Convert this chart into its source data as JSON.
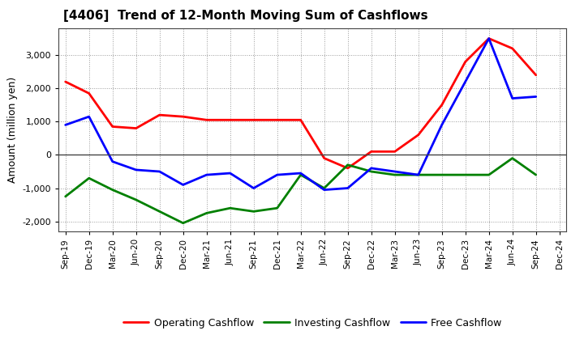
{
  "title": "[4406]  Trend of 12-Month Moving Sum of Cashflows",
  "ylabel": "Amount (million yen)",
  "xlabels": [
    "Sep-19",
    "Dec-19",
    "Mar-20",
    "Jun-20",
    "Sep-20",
    "Dec-20",
    "Mar-21",
    "Jun-21",
    "Sep-21",
    "Dec-21",
    "Mar-22",
    "Jun-22",
    "Sep-22",
    "Dec-22",
    "Mar-23",
    "Jun-23",
    "Sep-23",
    "Dec-23",
    "Mar-24",
    "Jun-24",
    "Sep-24",
    "Dec-24"
  ],
  "operating": [
    2200,
    1850,
    850,
    800,
    1200,
    1150,
    1050,
    1050,
    1050,
    1050,
    1050,
    -100,
    -400,
    100,
    100,
    600,
    1500,
    2800,
    3500,
    3200,
    2400,
    null
  ],
  "investing": [
    -1250,
    -700,
    -1050,
    -1350,
    -1700,
    -2050,
    -1750,
    -1600,
    -1700,
    -1600,
    -600,
    -1000,
    -300,
    -500,
    -600,
    -600,
    -600,
    -600,
    -600,
    -100,
    -600,
    null
  ],
  "free": [
    900,
    1150,
    -200,
    -450,
    -500,
    -900,
    -600,
    -550,
    -1000,
    -600,
    -550,
    -1050,
    -1000,
    -400,
    -500,
    -600,
    900,
    2200,
    3500,
    1700,
    1750,
    null
  ],
  "ylim": [
    -2300,
    3800
  ],
  "yticks": [
    -2000,
    -1000,
    0,
    1000,
    2000,
    3000
  ],
  "colors": {
    "operating": "#ff0000",
    "investing": "#008000",
    "free": "#0000ff"
  },
  "legend_labels": [
    "Operating Cashflow",
    "Investing Cashflow",
    "Free Cashflow"
  ],
  "grid_color": "#999999",
  "bg_color": "#ffffff"
}
